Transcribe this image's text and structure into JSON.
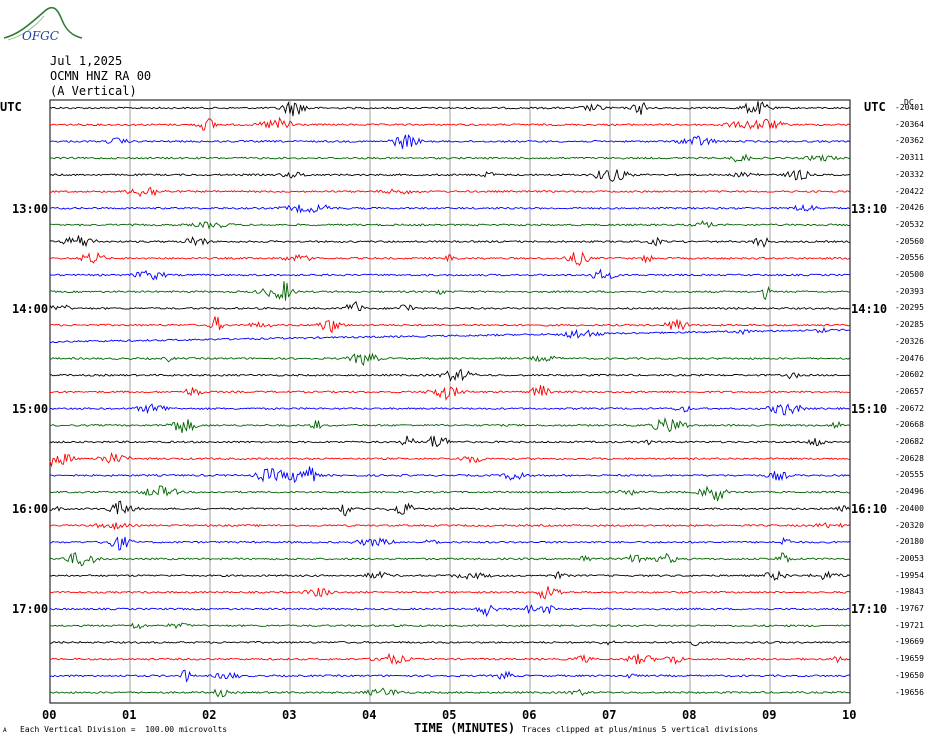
{
  "logo": {
    "text": "OFGC",
    "color": "#2e7d32",
    "text_color": "#1f3f9f"
  },
  "header": {
    "date": "Jul 1,2025",
    "station": "OCMN HNZ RA 00",
    "component": "(A Vertical)"
  },
  "utc_left": "UTC",
  "utc_right": "UTC",
  "dc_label": "DC",
  "left_times": [
    "13:00",
    "14:00",
    "15:00",
    "16:00",
    "17:00"
  ],
  "right_times": [
    "13:10",
    "14:10",
    "15:10",
    "16:10",
    "17:10"
  ],
  "footer": {
    "scale_note": "Each Vertical Division =  100.00 microvolts",
    "clip_note": "Traces clipped at plus/minus 5 vertical divisions",
    "corner_mark": "A"
  },
  "chart_data": {
    "type": "line",
    "title": "",
    "xlabel": "TIME (MINUTES)",
    "ylabel": "",
    "x_ticks": [
      "00",
      "01",
      "02",
      "03",
      "04",
      "05",
      "06",
      "07",
      "08",
      "09",
      "10"
    ],
    "xlim": [
      0,
      10
    ],
    "grid": true,
    "trace_colors": [
      "#000000",
      "#ff0000",
      "#0000ff",
      "#006400"
    ],
    "trace_count": 36,
    "dc_offsets": [
      "-20401",
      "-20364",
      "-20362",
      "-20311",
      "-20332",
      "-20422",
      "-20426",
      "-20532",
      "-20560",
      "-20556",
      "-20500",
      "-20393",
      "-20295",
      "-20285",
      "-20326",
      "-20476",
      "-20602",
      "-20657",
      "-20672",
      "-20668",
      "-20682",
      "-20628",
      "-20555",
      "-20496",
      "-20400",
      "-20320",
      "-20180",
      "-20053",
      "-19954",
      "-19843",
      "-19767",
      "-19721",
      "-19669",
      "-19659",
      "-19650",
      "-19656"
    ]
  }
}
